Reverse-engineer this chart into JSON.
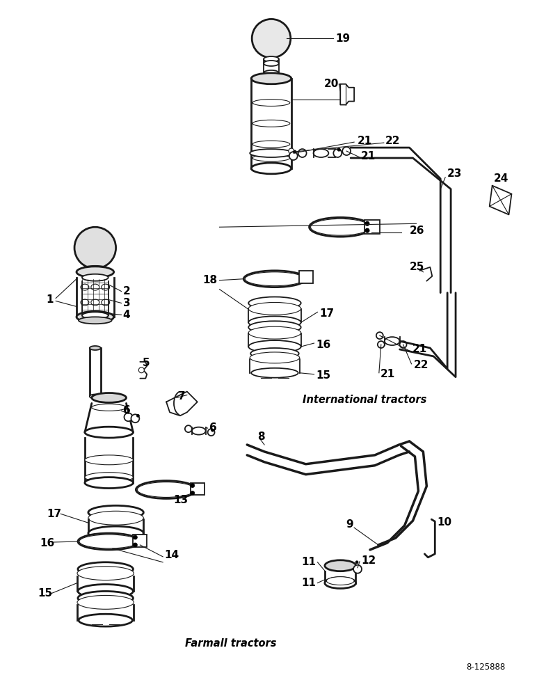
{
  "background_color": "#ffffff",
  "line_color": "#1a1a1a",
  "text_international": "International tractors",
  "text_farmall": "Farmall tractors",
  "text_partnum": "8-125888",
  "label_fontsize": 11,
  "italic_fontsize": 10.5
}
